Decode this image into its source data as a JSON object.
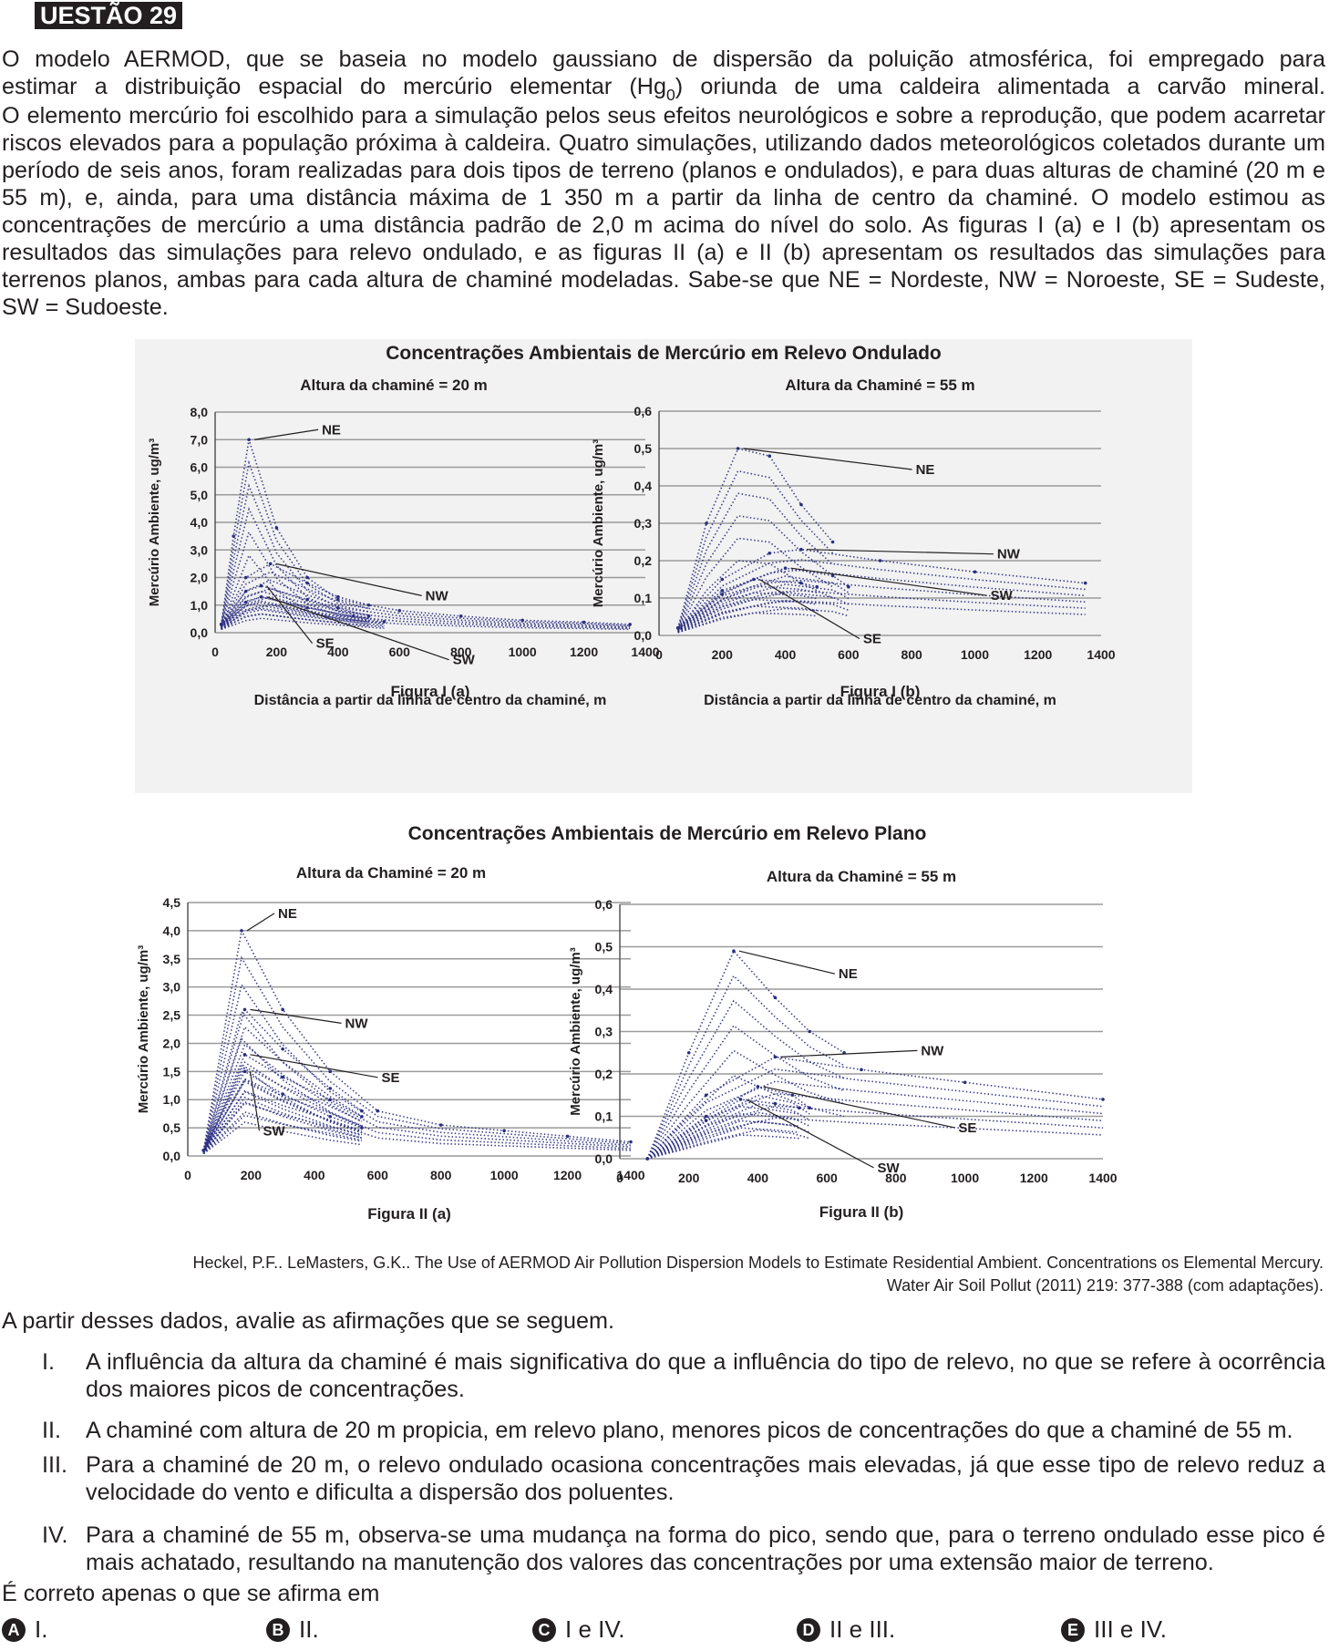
{
  "header": {
    "label": "UESTÃO 29"
  },
  "intro": {
    "line1": "O modelo AERMOD, que se baseia no modelo gaussiano de dispersão da poluição atmosférica, foi empregado para",
    "line2a": "estimar a distribuição espacial do mercúrio elementar (Hg",
    "line2sub": "0",
    "line2b": ") oriunda de uma caldeira alimentada a carvão mineral.",
    "rest": "O elemento mercúrio foi escolhido para a simulação pelos seus efeitos neurológicos e sobre a reprodução, que podem acarretar riscos elevados para a população próxima à caldeira. Quatro simulações, utilizando dados meteorológicos coletados durante um período de seis anos, foram realizadas para dois tipos de terreno (planos e ondulados), e para duas alturas de chaminé (20 m e 55 m), e, ainda, para uma distância máxima de 1 350 m a partir da linha de centro da chaminé. O modelo estimou as concentrações de mercúrio a uma distância padrão de 2,0 m acima do nível do solo.  As figuras I (a) e I (b) apresentam os resultados das simulações para relevo ondulado, e as figuras II (a) e II (b) apresentam os resultados das simulações para terrenos planos, ambas para cada altura de chaminé modeladas. Sabe-se que NE = Nordeste, NW = Noroeste, SE = Sudeste, SW = Sudoeste."
  },
  "figure_top": {
    "title": "Concentrações Ambientais de Mercúrio em Relevo Ondulado"
  },
  "figure_bottom": {
    "title": "Concentrações Ambientais de Mercúrio em Relevo Plano"
  },
  "chart_data": [
    {
      "type": "scatter",
      "caption": "Figura I (a)",
      "subtitle": "Altura da chaminé = 20 m",
      "xlabel": "Distância a partir da linha de centro da chaminé, m",
      "ylabel": "Mercúrio Ambiente, ug/m³",
      "xlim": [
        0,
        1400
      ],
      "ylim": [
        0,
        8
      ],
      "x_ticks": [
        "0",
        "200",
        "400",
        "600",
        "800",
        "1000",
        "1200",
        "1400"
      ],
      "y_ticks": [
        "0,0",
        "1,0",
        "2,0",
        "3,0",
        "4,0",
        "5,0",
        "6,0",
        "7,0",
        "8,0"
      ],
      "grid": true,
      "series": [
        {
          "name": "NE",
          "peak_x": 110,
          "peak_y": 7.0,
          "x": [
            20,
            60,
            110,
            200,
            300,
            400,
            600,
            800,
            1000,
            1200,
            1350
          ],
          "y": [
            0.3,
            3.5,
            7.0,
            3.8,
            2.0,
            1.2,
            0.8,
            0.6,
            0.45,
            0.38,
            0.3
          ]
        },
        {
          "name": "NW",
          "peak_x": 180,
          "peak_y": 2.5,
          "x": [
            20,
            100,
            180,
            300,
            400,
            500
          ],
          "y": [
            0.3,
            2.0,
            2.5,
            1.8,
            1.3,
            1.0
          ]
        },
        {
          "name": "SE",
          "peak_x": 150,
          "peak_y": 1.7,
          "x": [
            20,
            100,
            150,
            300,
            400,
            500
          ],
          "y": [
            0.3,
            1.5,
            1.7,
            1.2,
            0.9,
            0.6
          ]
        },
        {
          "name": "SW",
          "peak_x": 150,
          "peak_y": 1.3,
          "x": [
            20,
            100,
            150,
            300,
            450,
            550
          ],
          "y": [
            0.3,
            1.1,
            1.3,
            0.9,
            0.6,
            0.4
          ]
        }
      ]
    },
    {
      "type": "scatter",
      "caption": "Figura I (b)",
      "subtitle": "Altura da Chaminé = 55 m",
      "xlabel": "Distância a partir da linha de centro da chaminé, m",
      "ylabel": "Mercúrio Ambiente, ug/m³",
      "xlim": [
        0,
        1400
      ],
      "ylim": [
        0,
        0.6
      ],
      "x_ticks": [
        "0",
        "200",
        "400",
        "600",
        "800",
        "1000",
        "1200",
        "1400"
      ],
      "y_ticks": [
        "0,0",
        "0,1",
        "0,2",
        "0,3",
        "0,4",
        "0,5",
        "0,6"
      ],
      "grid": true,
      "series": [
        {
          "name": "NE",
          "peak_x": 250,
          "peak_y": 0.5,
          "x": [
            60,
            150,
            250,
            350,
            450,
            550
          ],
          "y": [
            0.02,
            0.3,
            0.5,
            0.48,
            0.35,
            0.25
          ]
        },
        {
          "name": "NW",
          "peak_x": 450,
          "peak_y": 0.23,
          "x": [
            60,
            200,
            350,
            450,
            700,
            1000,
            1350
          ],
          "y": [
            0.02,
            0.15,
            0.22,
            0.23,
            0.2,
            0.17,
            0.14
          ]
        },
        {
          "name": "SW",
          "peak_x": 400,
          "peak_y": 0.18,
          "x": [
            60,
            200,
            400,
            550,
            600
          ],
          "y": [
            0.02,
            0.12,
            0.18,
            0.16,
            0.13
          ]
        },
        {
          "name": "SE",
          "peak_x": 300,
          "peak_y": 0.15,
          "x": [
            60,
            200,
            300,
            450,
            500
          ],
          "y": [
            0.02,
            0.11,
            0.15,
            0.14,
            0.13
          ]
        }
      ]
    },
    {
      "type": "scatter",
      "caption": "Figura II (a)",
      "subtitle": "Altura da Chaminé = 20 m",
      "ylabel": "Mercúrio Ambiente, ug/m³",
      "xlim": [
        0,
        1400
      ],
      "ylim": [
        0,
        4.5
      ],
      "x_ticks": [
        "0",
        "200",
        "400",
        "600",
        "800",
        "1000",
        "1200",
        "1400"
      ],
      "y_ticks": [
        "0,0",
        "0,5",
        "1,0",
        "1,5",
        "2,0",
        "2,5",
        "3,0",
        "3,5",
        "4,0",
        "4,5"
      ],
      "grid": true,
      "series": [
        {
          "name": "NE",
          "peak_x": 170,
          "peak_y": 4.0,
          "x": [
            50,
            170,
            300,
            450,
            600,
            800,
            1000,
            1200,
            1400
          ],
          "y": [
            0.1,
            4.0,
            2.6,
            1.5,
            0.8,
            0.55,
            0.45,
            0.35,
            0.25
          ]
        },
        {
          "name": "NW",
          "peak_x": 180,
          "peak_y": 2.6,
          "x": [
            50,
            180,
            300,
            450,
            550
          ],
          "y": [
            0.1,
            2.6,
            1.9,
            1.2,
            0.8
          ]
        },
        {
          "name": "SE",
          "peak_x": 180,
          "peak_y": 1.8,
          "x": [
            50,
            180,
            300,
            450,
            550
          ],
          "y": [
            0.1,
            1.8,
            1.4,
            1.0,
            0.7
          ]
        },
        {
          "name": "SW",
          "peak_x": 180,
          "peak_y": 1.5,
          "x": [
            50,
            180,
            300,
            450,
            550
          ],
          "y": [
            0.1,
            1.5,
            1.1,
            0.7,
            0.5
          ]
        }
      ]
    },
    {
      "type": "scatter",
      "caption": "Figura II (b)",
      "subtitle": "Altura da Chaminé = 55 m",
      "ylabel": "Mercúrio Ambiente, ug/m³",
      "xlim": [
        0,
        1400
      ],
      "ylim": [
        0,
        0.6
      ],
      "x_ticks": [
        "0",
        "200",
        "400",
        "600",
        "800",
        "1000",
        "1200",
        "1400"
      ],
      "y_ticks": [
        "0,0",
        "0,1",
        "0,2",
        "0,3",
        "0,4",
        "0,5",
        "0,6"
      ],
      "grid": true,
      "series": [
        {
          "name": "NE",
          "peak_x": 330,
          "peak_y": 0.49,
          "x": [
            80,
            200,
            330,
            450,
            550,
            650
          ],
          "y": [
            0.0,
            0.25,
            0.49,
            0.38,
            0.3,
            0.25
          ]
        },
        {
          "name": "NW",
          "peak_x": 450,
          "peak_y": 0.24,
          "x": [
            80,
            250,
            450,
            700,
            1000,
            1400
          ],
          "y": [
            0.0,
            0.15,
            0.24,
            0.21,
            0.18,
            0.14
          ]
        },
        {
          "name": "SE",
          "peak_x": 400,
          "peak_y": 0.17,
          "x": [
            80,
            250,
            400,
            500,
            550
          ],
          "y": [
            0.0,
            0.1,
            0.17,
            0.15,
            0.12
          ]
        },
        {
          "name": "SW",
          "peak_x": 350,
          "peak_y": 0.14,
          "x": [
            80,
            250,
            350,
            450,
            520
          ],
          "y": [
            0.0,
            0.09,
            0.14,
            0.13,
            0.12
          ]
        }
      ]
    }
  ],
  "source": {
    "line1": "Heckel, P.F.. LeMasters, G.K.. The Use of AERMOD Air Pollution Dispersion Models to Estimate Residential Ambient. Concentrations os Elemental Mercury.",
    "line2": "Water Air Soil Pollut (2011) 219: 377-388 (com adaptações)."
  },
  "prompt": "A partir desses dados, avalie as afirmações que se seguem.",
  "statements": [
    {
      "num": "I.",
      "text": "A influência da altura da chaminé é mais significativa do que a influência do tipo de relevo, no que se refere à ocorrência dos maiores picos de concentrações."
    },
    {
      "num": "II.",
      "text": "A chaminé com altura de 20 m propicia, em relevo plano, menores picos de concentrações do que a chaminé de 55 m."
    },
    {
      "num": "III.",
      "text": "Para a chaminé de 20 m, o relevo ondulado ocasiona concentrações mais elevadas, já que esse tipo de relevo reduz a velocidade do vento e dificulta a dispersão dos poluentes."
    },
    {
      "num": "IV.",
      "text": "Para a chaminé de 55 m, observa-se uma mudança na forma do pico, sendo que, para o terreno ondulado esse pico é mais achatado, resultando na manutenção dos valores das concentrações por uma extensão maior de terreno."
    }
  ],
  "question": "É correto apenas o que se afirma em",
  "options": [
    {
      "letter": "A",
      "text": "I."
    },
    {
      "letter": "B",
      "text": "II."
    },
    {
      "letter": "C",
      "text": "I e IV."
    },
    {
      "letter": "D",
      "text": "II e III."
    },
    {
      "letter": "E",
      "text": "III e IV."
    }
  ],
  "colors": {
    "series": "#2a2e80",
    "grid": "#9a9a9a",
    "panel_bg": "#f2f2f2",
    "ink": "#231f20"
  }
}
